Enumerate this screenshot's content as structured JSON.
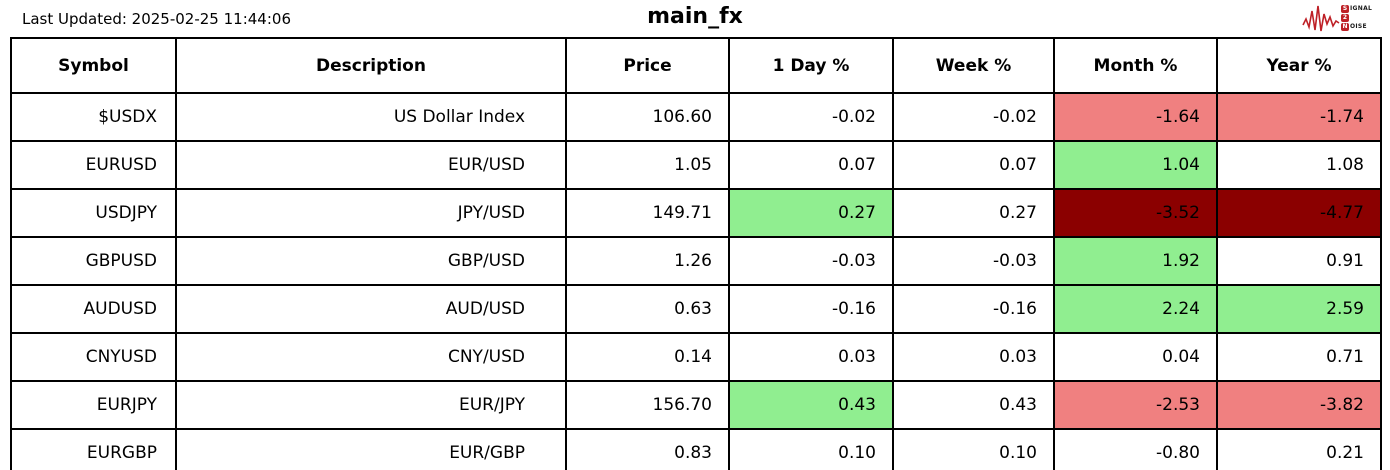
{
  "header": {
    "last_updated": "Last Updated: 2025-02-25 11:44:06",
    "title": "main_fx",
    "logo": {
      "word1_initial": "S",
      "word1_rest": "IGNAL",
      "word2": "2",
      "word3_initial": "N",
      "word3_rest": "OISE"
    }
  },
  "colors": {
    "white": "#FFFFFF",
    "green": "#90EE90",
    "salmon": "#F08080",
    "darkred": "#8B0000",
    "logo_red": "#BE2026",
    "border": "#000000"
  },
  "chart_data": {
    "type": "table",
    "title": "main_fx",
    "columns": [
      "Symbol",
      "Description",
      "Price",
      "1 Day %",
      "Week %",
      "Month %",
      "Year %"
    ],
    "rows": [
      {
        "cells": [
          "$USDX",
          "US Dollar Index",
          "106.60",
          "-0.02",
          "-0.02",
          "-1.64",
          "-1.74"
        ],
        "colors": [
          "white",
          "white",
          "white",
          "white",
          "white",
          "salmon",
          "salmon"
        ]
      },
      {
        "cells": [
          "EURUSD",
          "EUR/USD",
          "1.05",
          "0.07",
          "0.07",
          "1.04",
          "1.08"
        ],
        "colors": [
          "white",
          "white",
          "white",
          "white",
          "white",
          "green",
          "white"
        ]
      },
      {
        "cells": [
          "USDJPY",
          "JPY/USD",
          "149.71",
          "0.27",
          "0.27",
          "-3.52",
          "-4.77"
        ],
        "colors": [
          "white",
          "white",
          "white",
          "green",
          "white",
          "darkred",
          "darkred"
        ]
      },
      {
        "cells": [
          "GBPUSD",
          "GBP/USD",
          "1.26",
          "-0.03",
          "-0.03",
          "1.92",
          "0.91"
        ],
        "colors": [
          "white",
          "white",
          "white",
          "white",
          "white",
          "green",
          "white"
        ]
      },
      {
        "cells": [
          "AUDUSD",
          "AUD/USD",
          "0.63",
          "-0.16",
          "-0.16",
          "2.24",
          "2.59"
        ],
        "colors": [
          "white",
          "white",
          "white",
          "white",
          "white",
          "green",
          "green"
        ]
      },
      {
        "cells": [
          "CNYUSD",
          "CNY/USD",
          "0.14",
          "0.03",
          "0.03",
          "0.04",
          "0.71"
        ],
        "colors": [
          "white",
          "white",
          "white",
          "white",
          "white",
          "white",
          "white"
        ]
      },
      {
        "cells": [
          "EURJPY",
          "EUR/JPY",
          "156.70",
          "0.43",
          "0.43",
          "-2.53",
          "-3.82"
        ],
        "colors": [
          "white",
          "white",
          "white",
          "green",
          "white",
          "salmon",
          "salmon"
        ]
      },
      {
        "cells": [
          "EURGBP",
          "EUR/GBP",
          "0.83",
          "0.10",
          "0.10",
          "-0.80",
          "0.21"
        ],
        "colors": [
          "white",
          "white",
          "white",
          "white",
          "white",
          "white",
          "white"
        ]
      }
    ]
  }
}
